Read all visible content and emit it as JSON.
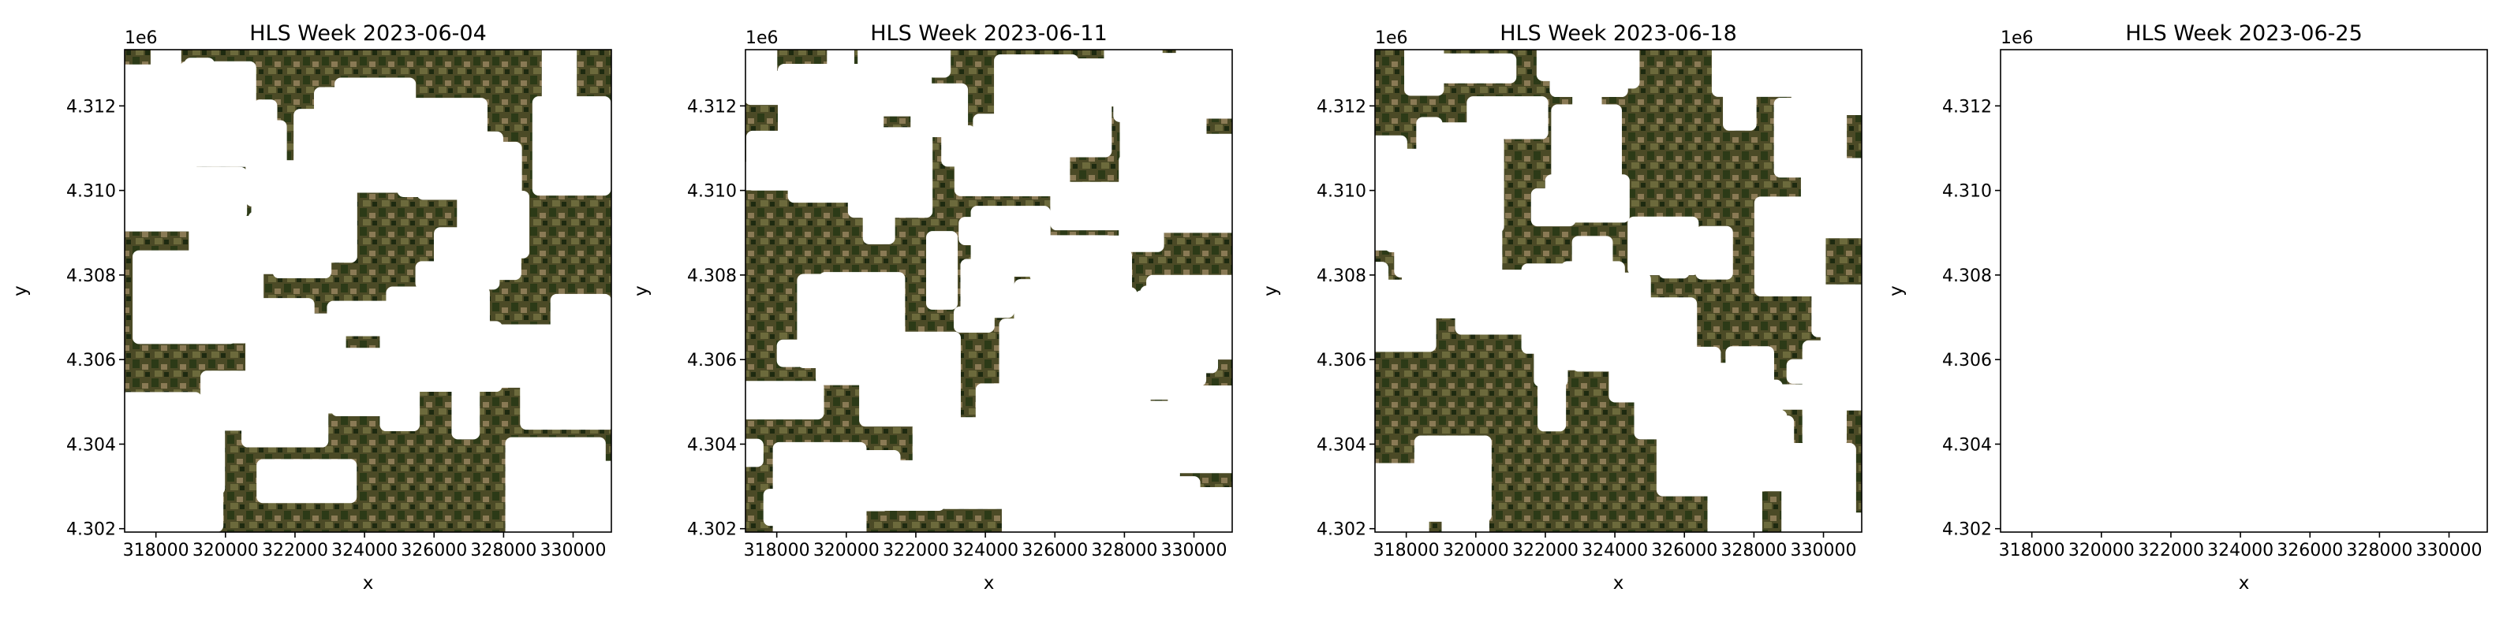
{
  "chart_data": [
    {
      "type": "image",
      "title": "HLS Week 2023-06-04",
      "xlabel": "x",
      "ylabel": "y",
      "y_offset_text": "1e6",
      "xlim": [
        317100,
        331100
      ],
      "ylim": [
        4301920,
        4313330
      ],
      "xticks": [
        318000,
        320000,
        322000,
        324000,
        326000,
        328000,
        330000
      ],
      "yticks": [
        {
          "value": 4302000,
          "label": "4.302"
        },
        {
          "value": 4304000,
          "label": "4.304"
        },
        {
          "value": 4306000,
          "label": "4.306"
        },
        {
          "value": 4308000,
          "label": "4.308"
        },
        {
          "value": 4310000,
          "label": "4.310"
        },
        {
          "value": 4312000,
          "label": "4.312"
        }
      ]
    },
    {
      "type": "image",
      "title": "HLS Week 2023-06-11",
      "xlabel": "x",
      "ylabel": "y",
      "y_offset_text": "1e6",
      "xlim": [
        317100,
        331100
      ],
      "ylim": [
        4301920,
        4313330
      ],
      "xticks": [
        318000,
        320000,
        322000,
        324000,
        326000,
        328000,
        330000
      ],
      "yticks": [
        {
          "value": 4302000,
          "label": "4.302"
        },
        {
          "value": 4304000,
          "label": "4.304"
        },
        {
          "value": 4306000,
          "label": "4.306"
        },
        {
          "value": 4308000,
          "label": "4.308"
        },
        {
          "value": 4310000,
          "label": "4.310"
        },
        {
          "value": 4312000,
          "label": "4.312"
        }
      ]
    },
    {
      "type": "image",
      "title": "HLS Week 2023-06-18",
      "xlabel": "x",
      "ylabel": "y",
      "y_offset_text": "1e6",
      "xlim": [
        317100,
        331100
      ],
      "ylim": [
        4301920,
        4313330
      ],
      "xticks": [
        318000,
        320000,
        322000,
        324000,
        326000,
        328000,
        330000
      ],
      "yticks": [
        {
          "value": 4302000,
          "label": "4.302"
        },
        {
          "value": 4304000,
          "label": "4.304"
        },
        {
          "value": 4306000,
          "label": "4.306"
        },
        {
          "value": 4308000,
          "label": "4.308"
        },
        {
          "value": 4310000,
          "label": "4.310"
        },
        {
          "value": 4312000,
          "label": "4.312"
        }
      ]
    },
    {
      "type": "image",
      "title": "HLS Week 2023-06-25",
      "xlabel": "x",
      "ylabel": "y",
      "y_offset_text": "1e6",
      "xlim": [
        317100,
        331100
      ],
      "ylim": [
        4301920,
        4313330
      ],
      "xticks": [
        318000,
        320000,
        322000,
        324000,
        326000,
        328000,
        330000
      ],
      "yticks": [
        {
          "value": 4302000,
          "label": "4.302"
        },
        {
          "value": 4304000,
          "label": "4.304"
        },
        {
          "value": 4306000,
          "label": "4.306"
        },
        {
          "value": 4308000,
          "label": "4.308"
        },
        {
          "value": 4310000,
          "label": "4.310"
        },
        {
          "value": 4312000,
          "label": "4.312"
        }
      ]
    }
  ]
}
